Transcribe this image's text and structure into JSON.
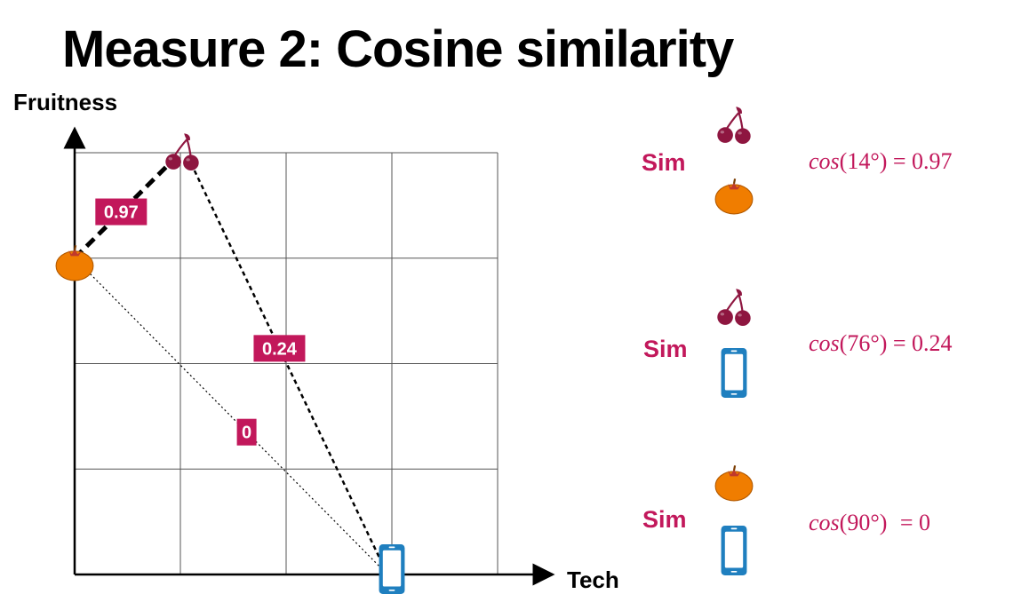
{
  "title": "Measure 2: Cosine similarity",
  "axes": {
    "y_label": "Fruitness",
    "x_label": "Tech"
  },
  "colors": {
    "accent": "#c2185b",
    "orange": "#f07d00",
    "cherry": "#8e1640",
    "phone": "#1f7fbf",
    "grid": "#555555"
  },
  "diagram": {
    "grid_cells": {
      "columns": 4,
      "rows": 4
    },
    "items": [
      {
        "name": "cherry",
        "icon": "cherry-icon",
        "tech": 1,
        "fruitness": 4
      },
      {
        "name": "orange",
        "icon": "orange-icon",
        "tech": 0,
        "fruitness": 3
      },
      {
        "name": "phone",
        "icon": "phone-icon",
        "tech": 3,
        "fruitness": 0
      }
    ],
    "links": [
      {
        "from": "orange",
        "to": "cherry",
        "label": "0.97",
        "style": "bold-dashed"
      },
      {
        "from": "cherry",
        "to": "phone",
        "label": "0.24",
        "style": "dashed"
      },
      {
        "from": "orange",
        "to": "phone",
        "label": "0",
        "style": "dotted"
      }
    ]
  },
  "comparisons": [
    {
      "sim_label": "Sim",
      "top_icon": "cherry-icon",
      "bottom_icon": "orange-icon",
      "fn": "cos",
      "angle": "(14°)",
      "result": "= 0.97"
    },
    {
      "sim_label": "Sim",
      "top_icon": "cherry-icon",
      "bottom_icon": "phone-icon",
      "fn": "cos",
      "angle": "(76°)",
      "result": "= 0.24"
    },
    {
      "sim_label": "Sim",
      "top_icon": "orange-icon",
      "bottom_icon": "phone-icon",
      "fn": "cos",
      "angle": "(90°)",
      "result": "= 0"
    }
  ]
}
